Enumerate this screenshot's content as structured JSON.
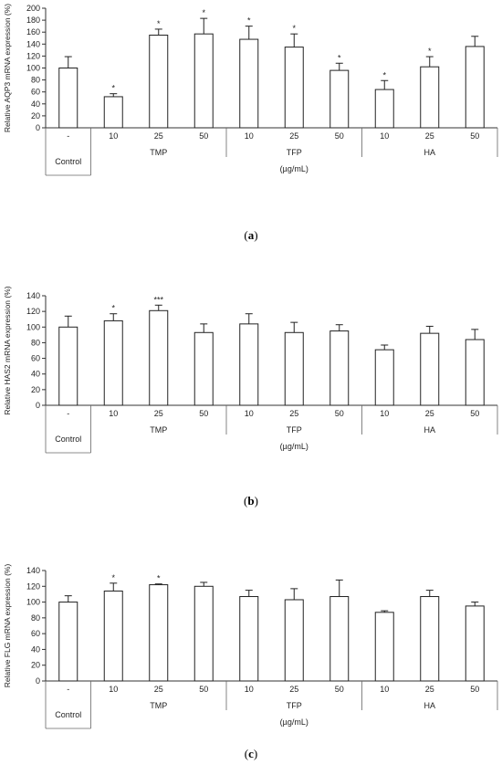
{
  "chart_data": [
    {
      "type": "bar",
      "panel_label": "a",
      "ylabel": "Relative AQP3 mRNA expression (%)",
      "ylim": [
        0,
        200
      ],
      "yticks": [
        0,
        20,
        40,
        60,
        80,
        100,
        120,
        140,
        160,
        180,
        200
      ],
      "categories": [
        "-",
        "10",
        "25",
        "50",
        "10",
        "25",
        "50",
        "10",
        "25",
        "50"
      ],
      "groups": [
        "Control",
        "TMP",
        "TFP",
        "HA"
      ],
      "unit_label": "(µg/mL)",
      "values": [
        100,
        52,
        155,
        157,
        148,
        135,
        96,
        64,
        102,
        136
      ],
      "errors": [
        19,
        5,
        10,
        26,
        22,
        22,
        12,
        15,
        17,
        17
      ],
      "significance": [
        "",
        "*",
        "*",
        "*",
        "*",
        "*",
        "*",
        "*",
        "*",
        ""
      ]
    },
    {
      "type": "bar",
      "panel_label": "b",
      "ylabel": "Relative HAS2 mRNA expression (%)",
      "ylim": [
        0,
        140
      ],
      "yticks": [
        0,
        20,
        40,
        60,
        80,
        100,
        120,
        140
      ],
      "categories": [
        "-",
        "10",
        "25",
        "50",
        "10",
        "25",
        "50",
        "10",
        "25",
        "50"
      ],
      "groups": [
        "Control",
        "TMP",
        "TFP",
        "HA"
      ],
      "unit_label": "(µg/mL)",
      "values": [
        100,
        108,
        121,
        93,
        104,
        93,
        95,
        71,
        92,
        84
      ],
      "errors": [
        14,
        9,
        7,
        11,
        13,
        13,
        8,
        6,
        9,
        13
      ],
      "significance": [
        "",
        "*",
        "***",
        "",
        "",
        "",
        "",
        "",
        "",
        ""
      ]
    },
    {
      "type": "bar",
      "panel_label": "c",
      "ylabel": "Relative FLG mRNA expression (%)",
      "ylim": [
        0,
        140
      ],
      "yticks": [
        0,
        20,
        40,
        60,
        80,
        100,
        120,
        140
      ],
      "categories": [
        "-",
        "10",
        "25",
        "50",
        "10",
        "25",
        "50",
        "10",
        "25",
        "50"
      ],
      "groups": [
        "Control",
        "TMP",
        "TFP",
        "HA"
      ],
      "unit_label": "(µg/mL)",
      "values": [
        100,
        114,
        122,
        120,
        107,
        103,
        107,
        87,
        107,
        95
      ],
      "errors": [
        8,
        10,
        1,
        5,
        8,
        14,
        21,
        2,
        8,
        5
      ],
      "significance": [
        "",
        "*",
        "*",
        "",
        "",
        "",
        "",
        "",
        "",
        ""
      ]
    }
  ]
}
